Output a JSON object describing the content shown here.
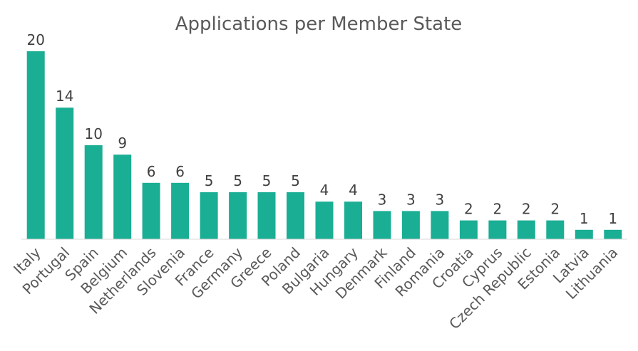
{
  "chart_data": {
    "type": "bar",
    "title": "Applications per Member State",
    "xlabel": "",
    "ylabel": "",
    "ylim": [
      0,
      20
    ],
    "grid": false,
    "legend": "none",
    "bar_color": "#1aae94",
    "categories": [
      "Italy",
      "Portugal",
      "Spain",
      "Belgium",
      "Netherlands",
      "Slovenia",
      "France",
      "Germany",
      "Greece",
      "Poland",
      "Bulgaria",
      "Hungary",
      "Denmark",
      "Finland",
      "Romania",
      "Croatia",
      "Cyprus",
      "Czech Republic",
      "Estonia",
      "Latvia",
      "Lithuania"
    ],
    "values": [
      20,
      14,
      10,
      9,
      6,
      6,
      5,
      5,
      5,
      5,
      4,
      4,
      3,
      3,
      3,
      2,
      2,
      2,
      2,
      1,
      1
    ]
  }
}
